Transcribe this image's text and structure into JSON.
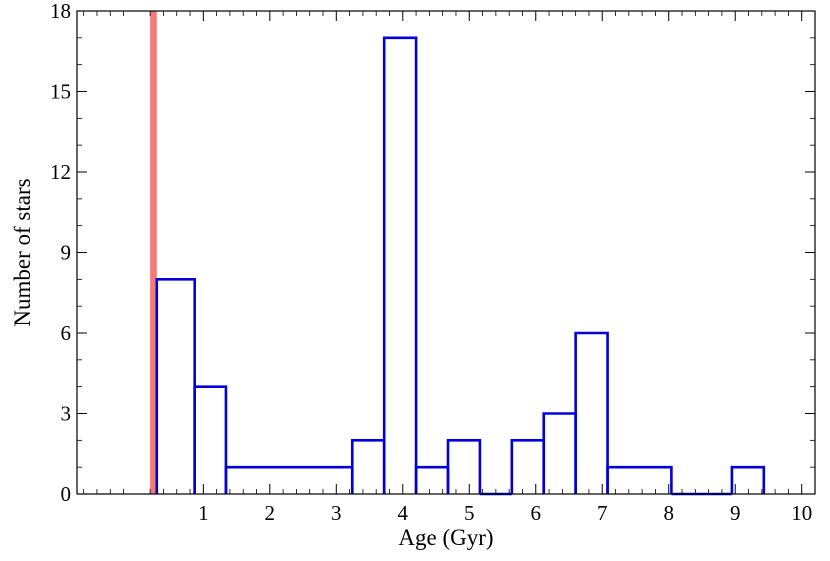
{
  "chart_data": {
    "type": "histogram",
    "xlabel": "Age (Gyr)",
    "ylabel": "Number of stars",
    "xlim": [
      -0.9,
      10.2
    ],
    "ylim": [
      0,
      18
    ],
    "xticks": [
      1,
      2,
      3,
      4,
      5,
      6,
      7,
      8,
      9,
      10
    ],
    "yticks": [
      0,
      3,
      6,
      9,
      12,
      15,
      18
    ],
    "grid": false,
    "bins": [
      {
        "x0": 0.3,
        "x1": 0.87,
        "count": 8
      },
      {
        "x0": 0.87,
        "x1": 1.34,
        "count": 4
      },
      {
        "x0": 1.34,
        "x1": 3.24,
        "count": 1
      },
      {
        "x0": 3.24,
        "x1": 3.72,
        "count": 2
      },
      {
        "x0": 3.72,
        "x1": 4.2,
        "count": 17
      },
      {
        "x0": 4.2,
        "x1": 4.68,
        "count": 1
      },
      {
        "x0": 4.68,
        "x1": 5.16,
        "count": 2
      },
      {
        "x0": 5.16,
        "x1": 5.64,
        "count": 0
      },
      {
        "x0": 5.64,
        "x1": 6.12,
        "count": 2
      },
      {
        "x0": 6.12,
        "x1": 6.6,
        "count": 3
      },
      {
        "x0": 6.6,
        "x1": 7.08,
        "count": 6
      },
      {
        "x0": 7.08,
        "x1": 8.04,
        "count": 1
      },
      {
        "x0": 8.04,
        "x1": 8.95,
        "count": 0
      },
      {
        "x0": 8.95,
        "x1": 9.43,
        "count": 1
      }
    ],
    "histogram_color": "#0000dd",
    "marker": {
      "x0": 0.2,
      "x1": 0.3,
      "color": "#f47a7a"
    }
  }
}
